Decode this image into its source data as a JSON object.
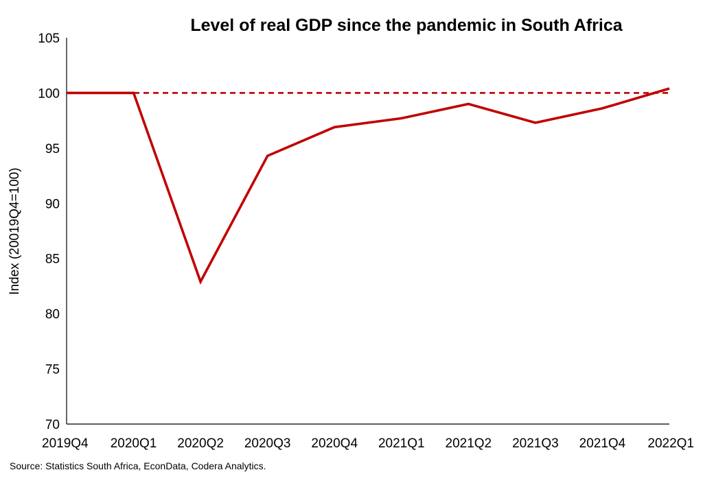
{
  "chart_data": {
    "type": "line",
    "title": "Level of real GDP since the pandemic in South Africa",
    "xlabel": "",
    "ylabel": "Index (20019Q4=100)",
    "categories": [
      "2019Q4",
      "2020Q1",
      "2020Q2",
      "2020Q3",
      "2020Q4",
      "2021Q1",
      "2021Q2",
      "2021Q3",
      "2021Q4",
      "2022Q1"
    ],
    "series": [
      {
        "values": [
          100,
          100,
          82.9,
          94.3,
          96.9,
          97.7,
          99.0,
          97.3,
          98.6,
          100.4
        ],
        "color": "#c00000",
        "style": "solid"
      },
      {
        "values": [
          100,
          100,
          100,
          100,
          100,
          100,
          100,
          100,
          100,
          100
        ],
        "color": "#c00000",
        "style": "dashed"
      }
    ],
    "ylim": [
      70,
      105
    ],
    "yticks": [
      70,
      75,
      80,
      85,
      90,
      95,
      100,
      105
    ],
    "grid": false,
    "legend": "none",
    "source": "Source: Statistics South Africa, EconData, Codera Analytics."
  }
}
